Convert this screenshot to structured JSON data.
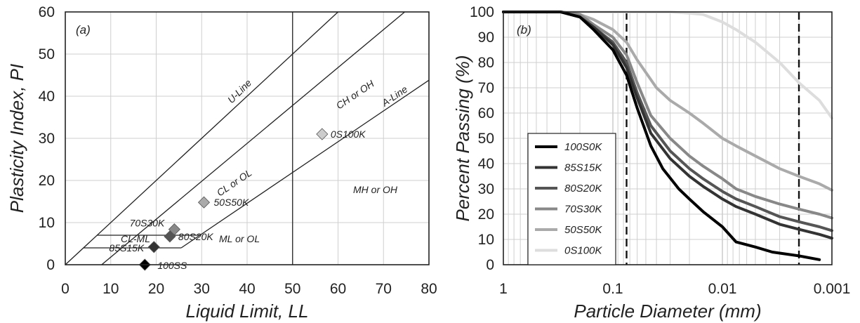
{
  "chart_data": [
    {
      "type": "scatter",
      "panel_label": "(a)",
      "xlabel": "Liquid Limit, LL",
      "ylabel": "Plasticity Index, PI",
      "xlim": [
        0,
        80
      ],
      "ylim": [
        0,
        60
      ],
      "x_ticks": [
        "0",
        "10",
        "20",
        "30",
        "40",
        "50",
        "60",
        "70",
        "80"
      ],
      "y_ticks": [
        "0",
        "10",
        "20",
        "30",
        "40",
        "50",
        "60"
      ],
      "grid": true,
      "points": [
        {
          "label": "100SS",
          "x": 17.5,
          "y": 0.0,
          "color": "#000000"
        },
        {
          "label": "85S15K",
          "x": 19.5,
          "y": 4.2,
          "color": "#333333"
        },
        {
          "label": "80S20K",
          "x": 23.0,
          "y": 6.7,
          "color": "#555555"
        },
        {
          "label": "70S30K",
          "x": 24.0,
          "y": 8.4,
          "color": "#888888"
        },
        {
          "label": "50S50K",
          "x": 30.5,
          "y": 14.8,
          "color": "#aaaaaa"
        },
        {
          "label": "0S100K",
          "x": 56.5,
          "y": 31.0,
          "color": "#cccccc"
        }
      ],
      "annotations": {
        "u_line": "U-Line",
        "a_line": "A-Line",
        "ch_oh": "CH or OH",
        "cl_ol": "CL or OL",
        "mh_oh": "MH or OH",
        "ml_ol": "ML or OL",
        "cl_ml": "CL-ML"
      }
    },
    {
      "type": "line",
      "panel_label": "(b)",
      "xlabel": "Particle Diameter (mm)",
      "ylabel": "Percent Passing (%)",
      "x_scale": "log",
      "x_reversed": true,
      "xlim": [
        1,
        0.001
      ],
      "ylim": [
        0,
        100
      ],
      "x_ticks": [
        "1",
        "0.1",
        "0.01",
        "0.001"
      ],
      "y_ticks": [
        "0",
        "10",
        "20",
        "30",
        "40",
        "50",
        "60",
        "70",
        "80",
        "90",
        "100"
      ],
      "grid": true,
      "vertical_dashed_lines": [
        0.075,
        0.002
      ],
      "legend_position": "bottom-left",
      "series": [
        {
          "name": "100S0K",
          "color": "#000000",
          "x": [
            1,
            0.5,
            0.3,
            0.2,
            0.15,
            0.1,
            0.075,
            0.06,
            0.045,
            0.035,
            0.025,
            0.02,
            0.015,
            0.01,
            0.0075,
            0.005,
            0.0035,
            0.002,
            0.0013
          ],
          "y": [
            100,
            100,
            100,
            98,
            93,
            85,
            75,
            62,
            47,
            38,
            30,
            26,
            21,
            15,
            9,
            7,
            5,
            3.5,
            2
          ]
        },
        {
          "name": "85S15K",
          "color": "#333333",
          "x": [
            1,
            0.5,
            0.3,
            0.2,
            0.15,
            0.1,
            0.075,
            0.06,
            0.045,
            0.03,
            0.02,
            0.015,
            0.01,
            0.0075,
            0.005,
            0.003,
            0.002,
            0.0013,
            0.001
          ],
          "y": [
            100,
            100,
            100,
            98,
            94,
            87,
            78,
            66,
            52,
            42,
            35,
            31,
            26,
            23,
            20,
            16,
            14,
            12,
            10.5
          ]
        },
        {
          "name": "80S20K",
          "color": "#555555",
          "x": [
            1,
            0.5,
            0.3,
            0.2,
            0.15,
            0.1,
            0.075,
            0.06,
            0.045,
            0.03,
            0.02,
            0.015,
            0.01,
            0.0075,
            0.005,
            0.003,
            0.002,
            0.0013,
            0.001
          ],
          "y": [
            100,
            100,
            100,
            98,
            94,
            88,
            80,
            68,
            55,
            45,
            38,
            34,
            29,
            26,
            23,
            19,
            17,
            15,
            13.5
          ]
        },
        {
          "name": "70S30K",
          "color": "#888888",
          "x": [
            1,
            0.5,
            0.3,
            0.2,
            0.15,
            0.1,
            0.075,
            0.06,
            0.045,
            0.03,
            0.02,
            0.015,
            0.01,
            0.0075,
            0.005,
            0.003,
            0.002,
            0.0013,
            0.001
          ],
          "y": [
            100,
            100,
            100,
            99,
            95,
            90,
            83,
            72,
            59,
            50,
            43,
            39,
            34,
            30,
            27,
            24,
            22,
            20,
            18.5
          ]
        },
        {
          "name": "50S50K",
          "color": "#aaaaaa",
          "x": [
            1,
            0.5,
            0.3,
            0.2,
            0.15,
            0.1,
            0.075,
            0.06,
            0.04,
            0.03,
            0.02,
            0.015,
            0.01,
            0.0075,
            0.005,
            0.003,
            0.002,
            0.0013,
            0.001
          ],
          "y": [
            100,
            100,
            100,
            99,
            97,
            93,
            88,
            81,
            70,
            65,
            60,
            56,
            50,
            47,
            43,
            38,
            35,
            32,
            29.5
          ]
        },
        {
          "name": "0S100K",
          "color": "#dddddd",
          "x": [
            1,
            0.5,
            0.3,
            0.1,
            0.05,
            0.03,
            0.02,
            0.015,
            0.01,
            0.0075,
            0.005,
            0.003,
            0.002,
            0.0013,
            0.001
          ],
          "y": [
            100,
            100,
            100,
            100,
            100,
            100,
            99.5,
            99,
            96,
            93,
            88,
            80,
            72,
            65,
            58
          ]
        }
      ]
    }
  ]
}
